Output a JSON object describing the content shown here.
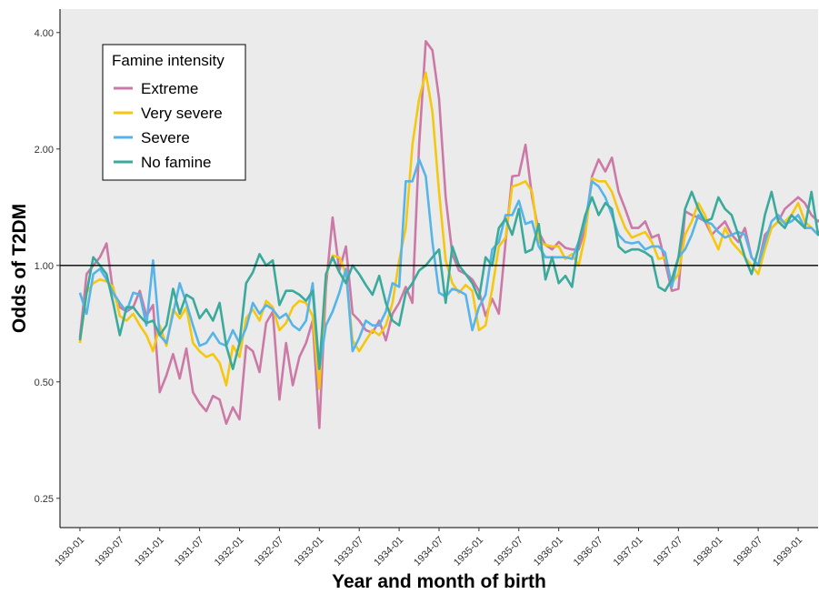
{
  "chart_data": {
    "type": "line",
    "xlabel": "Year and month of birth",
    "ylabel": "Odds of T2DM",
    "y_scale": "log2",
    "ylim": [
      0.21,
      4.6
    ],
    "y_ticks": [
      {
        "value": 0.25,
        "label": "0.25"
      },
      {
        "value": 0.5,
        "label": "0.50"
      },
      {
        "value": 1.0,
        "label": "1.00"
      },
      {
        "value": 2.0,
        "label": "2.00"
      },
      {
        "value": 4.0,
        "label": "4.00"
      }
    ],
    "reference_line": 1.0,
    "x_range": [
      "1929-10",
      "1939-04"
    ],
    "x_ticks": [
      "1930-01",
      "1930-07",
      "1931-01",
      "1931-07",
      "1932-01",
      "1932-07",
      "1933-01",
      "1933-07",
      "1934-01",
      "1934-07",
      "1935-01",
      "1935-07",
      "1936-01",
      "1936-07",
      "1937-01",
      "1937-07",
      "1938-01",
      "1938-07",
      "1939-01"
    ],
    "legend": {
      "title": "Famine intensity",
      "position": "top-left"
    },
    "grid": false,
    "background": "#ebebeb",
    "series": [
      {
        "name": "Extreme",
        "color": "#cc79a7",
        "x_start": "1930-01",
        "values": [
          0.65,
          0.95,
          1.0,
          1.05,
          1.14,
          0.85,
          0.78,
          0.76,
          0.78,
          0.86,
          0.74,
          0.79,
          0.47,
          0.52,
          0.59,
          0.51,
          0.61,
          0.47,
          0.44,
          0.42,
          0.46,
          0.45,
          0.39,
          0.43,
          0.4,
          0.62,
          0.6,
          0.53,
          0.71,
          0.76,
          0.45,
          0.63,
          0.49,
          0.58,
          0.63,
          0.72,
          0.38,
          0.88,
          1.33,
          0.97,
          1.12,
          0.75,
          0.72,
          0.68,
          0.67,
          0.72,
          0.64,
          0.75,
          0.8,
          0.88,
          0.8,
          2.05,
          3.8,
          3.6,
          2.7,
          1.5,
          1.07,
          0.97,
          0.95,
          0.92,
          0.86,
          0.74,
          0.82,
          0.75,
          1.15,
          1.7,
          1.71,
          2.05,
          1.5,
          1.22,
          1.13,
          1.1,
          1.15,
          1.11,
          1.1,
          1.1,
          1.25,
          1.7,
          1.88,
          1.75,
          1.9,
          1.55,
          1.4,
          1.25,
          1.25,
          1.3,
          1.18,
          1.2,
          1.02,
          0.86,
          0.87,
          1.38,
          1.35,
          1.33,
          1.3,
          1.2,
          1.25,
          1.3,
          1.2,
          1.15,
          1.25,
          1.05,
          1.0,
          1.2,
          1.25,
          1.3,
          1.4,
          1.45,
          1.5,
          1.45,
          1.35,
          1.3,
          1.35,
          1.3,
          1.25,
          1.2
        ]
      },
      {
        "name": "Very severe",
        "color": "#f5c710",
        "x_start": "1930-01",
        "values": [
          0.63,
          0.85,
          0.9,
          0.92,
          0.91,
          0.88,
          0.74,
          0.72,
          0.75,
          0.7,
          0.66,
          0.6,
          0.7,
          0.62,
          0.77,
          0.73,
          0.78,
          0.63,
          0.6,
          0.58,
          0.59,
          0.56,
          0.49,
          0.62,
          0.58,
          0.73,
          0.77,
          0.72,
          0.81,
          0.78,
          0.68,
          0.71,
          0.78,
          0.81,
          0.8,
          0.74,
          0.48,
          0.94,
          1.06,
          1.05,
          0.95,
          0.64,
          0.6,
          0.64,
          0.68,
          0.66,
          0.7,
          0.8,
          1.03,
          1.25,
          2.05,
          2.7,
          3.15,
          2.5,
          1.55,
          1.03,
          0.9,
          0.85,
          0.89,
          0.86,
          0.68,
          0.7,
          0.87,
          1.12,
          1.18,
          1.6,
          1.62,
          1.65,
          1.55,
          1.15,
          1.13,
          1.12,
          1.12,
          1.04,
          1.07,
          1.0,
          1.2,
          1.68,
          1.65,
          1.65,
          1.55,
          1.38,
          1.25,
          1.18,
          1.2,
          1.22,
          1.15,
          1.04,
          1.05,
          0.9,
          0.95,
          1.2,
          1.3,
          1.45,
          1.35,
          1.2,
          1.1,
          1.25,
          1.15,
          1.1,
          1.05,
          1.0,
          0.95,
          1.1,
          1.25,
          1.3,
          1.3,
          1.35,
          1.45,
          1.3,
          1.25,
          1.2,
          1.2,
          1.15,
          1.1,
          1.12
        ]
      },
      {
        "name": "Severe",
        "color": "#56b4e9",
        "x_start": "1930-01",
        "values": [
          0.85,
          0.75,
          0.95,
          0.98,
          0.92,
          0.85,
          0.8,
          0.76,
          0.85,
          0.84,
          0.7,
          1.03,
          0.66,
          0.63,
          0.75,
          0.9,
          0.8,
          0.7,
          0.62,
          0.63,
          0.67,
          0.63,
          0.62,
          0.68,
          0.63,
          0.69,
          0.8,
          0.75,
          0.79,
          0.77,
          0.73,
          0.75,
          0.7,
          0.68,
          0.72,
          0.9,
          0.54,
          0.7,
          0.76,
          0.85,
          0.98,
          0.6,
          0.65,
          0.72,
          0.7,
          0.7,
          0.76,
          0.9,
          0.88,
          1.65,
          1.65,
          1.88,
          1.7,
          1.15,
          0.85,
          0.83,
          0.87,
          0.86,
          0.84,
          0.68,
          0.78,
          0.84,
          1.1,
          1.15,
          1.35,
          1.35,
          1.47,
          1.28,
          1.3,
          1.12,
          1.05,
          1.05,
          1.05,
          1.05,
          1.04,
          1.15,
          1.3,
          1.65,
          1.6,
          1.5,
          1.35,
          1.2,
          1.15,
          1.14,
          1.15,
          1.1,
          1.12,
          1.12,
          1.08,
          0.88,
          1.05,
          1.1,
          1.2,
          1.35,
          1.3,
          1.28,
          1.22,
          1.18,
          1.2,
          1.22,
          1.2,
          1.05,
          1.0,
          1.15,
          1.3,
          1.35,
          1.28,
          1.3,
          1.35,
          1.25,
          1.25,
          1.2,
          1.25,
          1.25,
          1.18,
          1.15
        ]
      },
      {
        "name": "No famine",
        "color": "#3aaa9c",
        "x_start": "1930-01",
        "values": [
          0.64,
          0.85,
          1.05,
          1.0,
          0.95,
          0.8,
          0.66,
          0.78,
          0.78,
          0.74,
          0.71,
          0.72,
          0.66,
          0.7,
          0.87,
          0.75,
          0.84,
          0.82,
          0.73,
          0.77,
          0.72,
          0.8,
          0.62,
          0.54,
          0.63,
          0.9,
          0.96,
          1.07,
          1.0,
          1.03,
          0.79,
          0.86,
          0.86,
          0.84,
          0.81,
          0.86,
          0.54,
          0.95,
          1.05,
          0.96,
          0.9,
          1.0,
          0.95,
          0.89,
          0.84,
          0.94,
          0.8,
          0.72,
          0.7,
          0.85,
          0.9,
          0.97,
          1.0,
          1.05,
          1.1,
          0.8,
          1.12,
          1.0,
          0.95,
          0.9,
          0.82,
          1.05,
          1.0,
          1.25,
          1.32,
          1.2,
          1.4,
          1.08,
          1.1,
          1.28,
          0.92,
          1.05,
          0.9,
          0.94,
          0.88,
          1.15,
          1.35,
          1.5,
          1.35,
          1.45,
          1.4,
          1.12,
          1.08,
          1.1,
          1.1,
          1.08,
          1.05,
          0.88,
          0.86,
          0.92,
          1.05,
          1.4,
          1.55,
          1.4,
          1.3,
          1.32,
          1.5,
          1.4,
          1.35,
          1.2,
          1.05,
          0.95,
          1.1,
          1.35,
          1.55,
          1.3,
          1.25,
          1.35,
          1.3,
          1.25,
          1.55,
          1.2,
          1.3,
          1.05,
          0.97
        ]
      }
    ]
  }
}
